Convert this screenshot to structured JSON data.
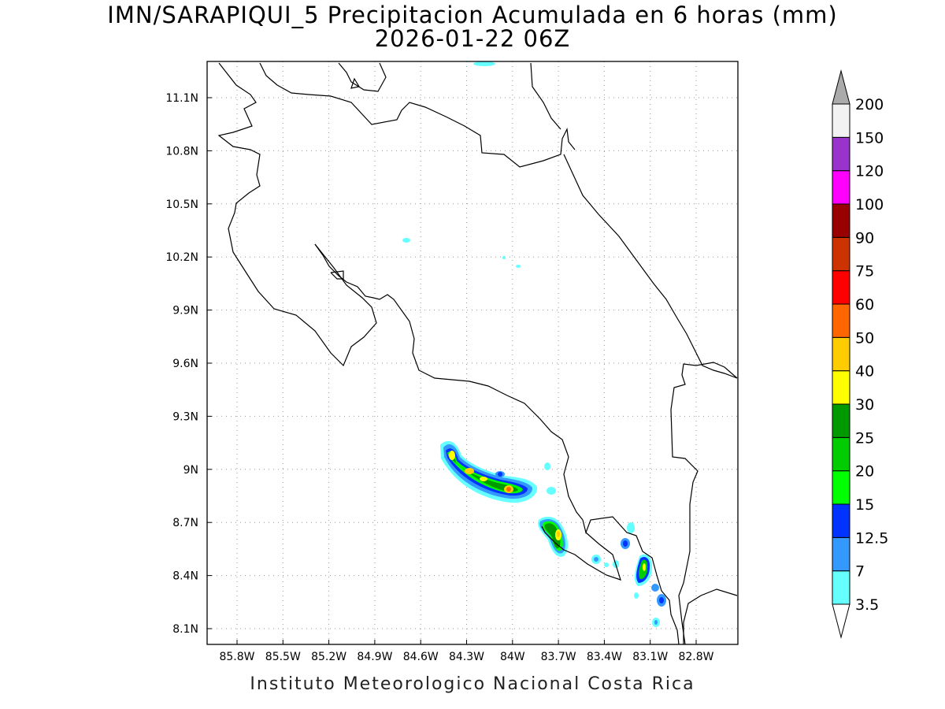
{
  "title": {
    "line1": "IMN/SARAPIQUI_5 Precipitacion Acumulada en 6 horas (mm)",
    "line2": "2026-01-22 06Z"
  },
  "footer": "Instituto Meteorologico Nacional Costa Rica",
  "map": {
    "lon_ticks": [
      "85.8W",
      "85.5W",
      "85.2W",
      "84.9W",
      "84.6W",
      "84.3W",
      "84W",
      "83.7W",
      "83.4W",
      "83.1W",
      "82.8W"
    ],
    "lat_ticks": [
      "11.1N",
      "10.8N",
      "10.5N",
      "10.2N",
      "9.9N",
      "9.6N",
      "9.3N",
      "9N",
      "8.7N",
      "8.4N",
      "8.1N"
    ],
    "grid": "dotted",
    "colors": {
      "coastline": "#000000",
      "grid": "#9a9a9a"
    }
  },
  "colorbar": {
    "labels": [
      "3.5",
      "7",
      "12.5",
      "15",
      "20",
      "25",
      "30",
      "40",
      "50",
      "60",
      "75",
      "90",
      "100",
      "120",
      "150",
      "200"
    ],
    "colors": [
      "#66ffff",
      "#3399ff",
      "#0033ff",
      "#00ff00",
      "#00cc00",
      "#009900",
      "#ffff00",
      "#ffcc00",
      "#ff6600",
      "#ff0000",
      "#cc3300",
      "#990000",
      "#ff00ff",
      "#9933cc",
      "#f2f2f2",
      "#aaaaaa",
      "#ffffff"
    ]
  }
}
